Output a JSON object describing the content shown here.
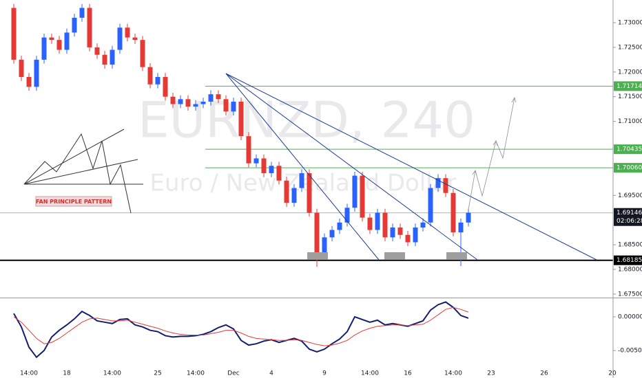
{
  "chart_data": [
    {
      "type": "candlestick",
      "title": "EURNZD, 240",
      "subtitle": "Euro / New Zealand Dollar",
      "annotation": "FAN PRINCIPLE PATTERN",
      "categories": [
        null,
        null,
        "14:00",
        null,
        null,
        null,
        null,
        "18",
        null,
        null,
        null,
        null,
        null,
        "14:00",
        null,
        null,
        null,
        null,
        null,
        "25",
        null,
        null,
        null,
        null,
        "14:00",
        null,
        null,
        null,
        null,
        "Dec",
        null,
        null,
        null,
        null,
        "4",
        null,
        null,
        null,
        null,
        null,
        null,
        "9",
        null,
        null,
        null,
        null,
        null,
        "14:00",
        null,
        null,
        null,
        null,
        "16",
        null,
        null,
        null,
        null,
        null,
        "14:00",
        null,
        null,
        null,
        null,
        "23",
        null,
        null,
        null,
        null,
        null,
        null,
        "26",
        null,
        null,
        null,
        null,
        null,
        null,
        null,
        null,
        "20"
      ],
      "open": [
        1.733,
        1.7225,
        1.719,
        1.717,
        1.7225,
        1.727,
        1.7265,
        1.7245,
        1.728,
        1.731,
        1.733,
        1.725,
        1.7235,
        1.7215,
        1.7245,
        1.729,
        1.727,
        1.7265,
        1.721,
        1.7175,
        1.719,
        1.715,
        1.7135,
        1.7145,
        1.713,
        1.7135,
        1.714,
        1.7155,
        1.7145,
        1.712,
        1.714,
        1.707,
        1.7015,
        1.7025,
        1.6995,
        1.701,
        1.698,
        1.6935,
        1.6965,
        1.6995,
        1.6915,
        1.683,
        1.6865,
        1.688,
        1.6895,
        1.6925,
        1.699,
        1.6905,
        1.688,
        1.6915,
        1.6865,
        1.6885,
        1.687,
        1.6855,
        1.6885,
        1.6895,
        1.6965,
        1.6985,
        1.6955,
        1.6875,
        1.6895,
        null,
        null,
        null,
        null,
        null,
        null,
        null,
        null,
        null,
        null,
        null,
        null,
        null,
        null,
        null,
        null,
        null,
        null,
        null
      ],
      "high": [
        1.7338,
        1.7233,
        1.7198,
        1.7233,
        1.7278,
        1.7278,
        1.7273,
        1.7288,
        1.7318,
        1.7338,
        1.7338,
        1.7258,
        1.7243,
        1.7253,
        1.7298,
        1.7298,
        1.7278,
        1.7273,
        1.7218,
        1.7198,
        1.7198,
        1.7158,
        1.7153,
        1.7153,
        1.7143,
        1.7148,
        1.7163,
        1.7163,
        1.7153,
        1.7148,
        1.7148,
        1.7078,
        1.7033,
        1.7033,
        1.7018,
        1.7018,
        1.6988,
        1.6973,
        1.7003,
        1.7003,
        1.6923,
        1.6873,
        1.6888,
        1.6903,
        1.6933,
        1.6998,
        1.6998,
        1.6913,
        1.6923,
        1.6923,
        1.6893,
        1.6893,
        1.6878,
        1.6893,
        1.6903,
        1.6973,
        1.6993,
        1.6993,
        1.6963,
        1.6903,
        1.6923,
        null,
        null,
        null,
        null,
        null,
        null,
        null,
        null,
        null,
        null,
        null,
        null,
        null,
        null,
        null,
        null,
        null,
        null,
        null
      ],
      "low": [
        1.7217,
        1.7182,
        1.7162,
        1.7162,
        1.7217,
        1.7257,
        1.7237,
        1.7237,
        1.7272,
        1.7302,
        1.7242,
        1.7227,
        1.7207,
        1.7207,
        1.7237,
        1.7262,
        1.7257,
        1.7202,
        1.7167,
        1.7167,
        1.7142,
        1.7127,
        1.7127,
        1.7122,
        1.7122,
        1.7127,
        1.7132,
        1.7137,
        1.7112,
        1.7112,
        1.7062,
        1.7007,
        1.7007,
        1.6987,
        1.6987,
        1.6972,
        1.6927,
        1.6927,
        1.6957,
        1.6907,
        1.6805,
        1.6822,
        1.6857,
        1.6872,
        1.6887,
        1.6917,
        1.6897,
        1.6872,
        1.6872,
        1.6857,
        1.6857,
        1.6862,
        1.6847,
        1.6847,
        1.6877,
        1.6887,
        1.6957,
        1.6947,
        1.6867,
        1.6807,
        1.6887,
        null,
        null,
        null,
        null,
        null,
        null,
        null,
        null,
        null,
        null,
        null,
        null,
        null,
        null,
        null,
        null,
        null,
        null,
        null
      ],
      "close": [
        1.7225,
        1.719,
        1.717,
        1.7225,
        1.727,
        1.7265,
        1.7245,
        1.728,
        1.731,
        1.733,
        1.725,
        1.7235,
        1.7215,
        1.7245,
        1.729,
        1.727,
        1.7265,
        1.721,
        1.7175,
        1.719,
        1.715,
        1.7135,
        1.7145,
        1.713,
        1.7135,
        1.714,
        1.7155,
        1.7145,
        1.712,
        1.714,
        1.707,
        1.7015,
        1.7025,
        1.6995,
        1.701,
        1.698,
        1.6935,
        1.6965,
        1.6995,
        1.6915,
        1.683,
        1.6865,
        1.688,
        1.6895,
        1.6925,
        1.699,
        1.6905,
        1.688,
        1.6915,
        1.6865,
        1.6885,
        1.687,
        1.6855,
        1.6885,
        1.6895,
        1.6965,
        1.6985,
        1.6955,
        1.6875,
        1.6895,
        1.6915,
        null,
        null,
        null,
        null,
        null,
        null,
        null,
        null,
        null,
        null,
        null,
        null,
        null,
        null,
        null,
        null,
        null,
        null,
        null
      ],
      "up_color": "#2962ff",
      "down_color": "#e53935",
      "ylim": [
        1.67443,
        1.7346
      ],
      "yticks": [
        {
          "value": 1.675,
          "label": "1.67500"
        },
        {
          "value": 1.68,
          "label": "1.68000"
        },
        {
          "value": 1.685,
          "label": "1.68500"
        },
        {
          "value": 1.695,
          "label": "1.69500"
        },
        {
          "value": 1.71,
          "label": "1.71000"
        },
        {
          "value": 1.715,
          "label": "1.71500"
        },
        {
          "value": 1.72,
          "label": "1.72000"
        },
        {
          "value": 1.725,
          "label": "1.72500"
        },
        {
          "value": 1.73,
          "label": "1.73000"
        }
      ],
      "levels": [
        {
          "value": 1.71714,
          "color": "#4caf50"
        },
        {
          "value": 1.70435,
          "color": "#4caf50"
        },
        {
          "value": 1.7006,
          "label": "1.70060",
          "color": "#4caf50"
        },
        {
          "value": 1.68185,
          "color": "#000000"
        }
      ],
      "last_price": {
        "value": 1.69146,
        "countdown": "02:06:28",
        "color": "#131722"
      }
    },
    {
      "type": "line",
      "series": [
        {
          "color": "#131d6e",
          "values": [
            0.0005,
            -0.0015,
            -0.0045,
            -0.006,
            -0.005,
            -0.003,
            -0.002,
            -0.0012,
            -0.0003,
            0.0008,
            0.0002,
            -0.0006,
            -0.0008,
            -0.001,
            -0.0004,
            -0.0003,
            -0.0012,
            -0.0015,
            -0.002,
            -0.0022,
            -0.0028,
            -0.003,
            -0.0029,
            -0.0029,
            -0.0028,
            -0.0026,
            -0.0022,
            -0.0016,
            -0.0012,
            -0.0018,
            -0.0035,
            -0.0042,
            -0.004,
            -0.0036,
            -0.0034,
            -0.0038,
            -0.0035,
            -0.0032,
            -0.0036,
            -0.0048,
            -0.0052,
            -0.0048,
            -0.004,
            -0.0033,
            -0.0022,
            0.0,
            -0.0004,
            -0.0008,
            -0.0005,
            -0.0012,
            -0.001,
            -0.0012,
            -0.0014,
            -0.001,
            -0.0006,
            0.001,
            0.0018,
            0.0022,
            0.0014,
            0.0002,
            -0.0002,
            null,
            null,
            null,
            null,
            null,
            null,
            null,
            null,
            null,
            null,
            null,
            null,
            null,
            null,
            null,
            null,
            null,
            null,
            null
          ]
        },
        {
          "color": "#e53935",
          "values": [
            0.0,
            -0.0008,
            -0.002,
            -0.0032,
            -0.004,
            -0.0038,
            -0.0032,
            -0.0024,
            -0.0016,
            -0.0008,
            -0.0003,
            -0.0002,
            -0.0004,
            -0.0006,
            -0.0006,
            -0.0005,
            -0.0008,
            -0.0011,
            -0.0014,
            -0.0017,
            -0.0021,
            -0.0024,
            -0.0026,
            -0.0027,
            -0.0027,
            -0.0027,
            -0.0025,
            -0.0023,
            -0.002,
            -0.002,
            -0.0024,
            -0.0029,
            -0.0032,
            -0.0033,
            -0.0034,
            -0.0035,
            -0.0035,
            -0.0034,
            -0.0035,
            -0.0038,
            -0.0041,
            -0.0043,
            -0.0042,
            -0.0039,
            -0.0035,
            -0.0027,
            -0.0021,
            -0.0017,
            -0.0014,
            -0.0013,
            -0.0012,
            -0.0012,
            -0.0013,
            -0.0012,
            -0.0011,
            -0.0005,
            0.0003,
            0.0011,
            0.0014,
            0.0011,
            0.0007,
            null,
            null,
            null,
            null,
            null,
            null,
            null,
            null,
            null,
            null,
            null,
            null,
            null,
            null,
            null,
            null,
            null,
            null,
            null
          ]
        }
      ],
      "ylim": [
        -0.00806,
        0.00265
      ],
      "yticks": [
        {
          "value": 0.0,
          "label": "0.00000"
        },
        {
          "value": -0.005,
          "label": "-0.00500"
        }
      ]
    }
  ]
}
